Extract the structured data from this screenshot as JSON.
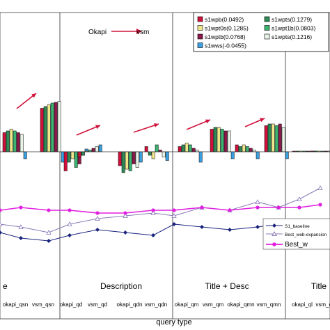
{
  "chart_data": {
    "type": "bar",
    "xlabel": "query type",
    "annotation": {
      "from": "Okapi",
      "to": "vsm"
    },
    "sections": [
      {
        "label": "e"
      },
      {
        "label": "Description"
      },
      {
        "label": "Title + Desc"
      },
      {
        "label": "Title"
      }
    ],
    "tick_labels": [
      "okapi_qsn",
      "vsm_qsn",
      "okapi_qd",
      "vsm_qd",
      "okapi_qdn",
      "vsm_qdn",
      "okapi_qm",
      "vsm_qm",
      "okapi_qmn",
      "vsm_qmn",
      "okapi_ql",
      "vsm_ql"
    ],
    "legend": [
      {
        "name": "s1wpb(0.0492)",
        "color": "#d0103a"
      },
      {
        "name": "s1wpts(0.1279)",
        "color": "#2e8b57"
      },
      {
        "name": "s1wpt0s(0.1285)",
        "color": "#f0e68c"
      },
      {
        "name": "s1wpt1b(0.0803)",
        "color": "#3cb371"
      },
      {
        "name": "s1wptb(0.0768)",
        "color": "#8b1a4a"
      },
      {
        "name": "s1wpts(0.1216)",
        "color": "#e8f4e8"
      },
      {
        "name": "s1wws(-0.0455)",
        "color": "#3aa0e0"
      }
    ],
    "bar_groups": [
      {
        "x": 4,
        "values": [
          0.55,
          0.6,
          0.65,
          0.6,
          0.55,
          0.5,
          -0.2
        ]
      },
      {
        "x": 58,
        "values": [
          1.25,
          1.3,
          1.35,
          1.4,
          1.42,
          1.45,
          -0.3
        ]
      },
      {
        "x": 92,
        "values": [
          -0.55,
          -0.3,
          -0.2,
          -0.45,
          -0.35,
          -0.1,
          0.08
        ]
      },
      {
        "x": 112,
        "values": [
          -0.15,
          -0.1,
          0.02,
          0.05,
          0.1,
          0.15,
          0.2
        ]
      },
      {
        "x": 170,
        "values": [
          -0.4,
          -0.6,
          -0.5,
          -0.55,
          -0.35,
          -0.45,
          -0.3
        ]
      },
      {
        "x": 208,
        "values": [
          0.15,
          -0.1,
          -0.2,
          0.2,
          0.05,
          -0.15,
          -0.25
        ]
      },
      {
        "x": 256,
        "values": [
          0.15,
          0.2,
          0.25,
          0.2,
          0.1,
          0.05,
          -0.3
        ]
      },
      {
        "x": 302,
        "values": [
          0.65,
          0.7,
          0.7,
          0.65,
          0.6,
          0.6,
          -0.2
        ]
      },
      {
        "x": 338,
        "values": [
          0.2,
          0.15,
          0.2,
          0.15,
          0.1,
          0.05,
          -0.2
        ]
      },
      {
        "x": 380,
        "values": [
          0.75,
          0.8,
          0.8,
          0.75,
          0.8,
          0.7,
          -0.2
        ]
      },
      {
        "x": 420,
        "values": [
          0.02,
          0.02,
          0.02,
          0.02,
          0.02,
          0.02,
          0.02
        ]
      },
      {
        "x": 446,
        "values": [
          0.02,
          0.02,
          0.02,
          0.02,
          0.02,
          0.02,
          0.02
        ]
      }
    ],
    "line_series": [
      {
        "name": "S1_baseline",
        "color": "#1a237e",
        "marker": "diamond",
        "x": [
          0,
          30,
          70,
          100,
          140,
          180,
          220,
          250,
          290,
          330,
          370,
          400,
          430,
          460
        ],
        "y": [
          0.24,
          0.22,
          0.21,
          0.23,
          0.25,
          0.24,
          0.23,
          0.27,
          0.26,
          0.25,
          0.26,
          0.27,
          0.28,
          0.27
        ]
      },
      {
        "name": "Best_web-expansion",
        "color": "#8a7ab8",
        "marker": "triangle",
        "x": [
          0,
          30,
          70,
          100,
          140,
          180,
          220,
          250,
          290,
          330,
          370,
          400,
          430,
          460
        ],
        "y": [
          0.27,
          0.26,
          0.24,
          0.27,
          0.29,
          0.3,
          0.31,
          0.3,
          0.33,
          0.32,
          0.35,
          0.33,
          0.36,
          0.4
        ]
      },
      {
        "name": "Best_w",
        "color": "#e020e0",
        "marker": "dot",
        "x": [
          0,
          30,
          70,
          100,
          140,
          180,
          220,
          250,
          290,
          330,
          370,
          400,
          430,
          460
        ],
        "y": [
          0.32,
          0.33,
          0.32,
          0.32,
          0.31,
          0.31,
          0.32,
          0.32,
          0.33,
          0.32,
          0.33,
          0.33,
          0.33,
          0.34
        ]
      }
    ]
  }
}
